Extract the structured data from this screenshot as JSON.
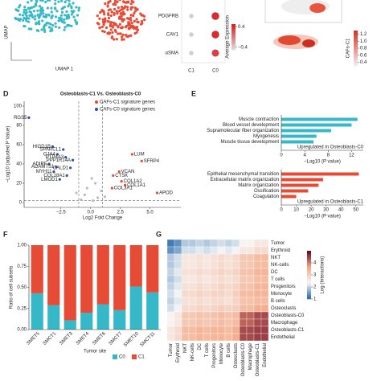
{
  "chart_data": [
    {
      "type": "umap",
      "xlabel": "UMAP 1",
      "ylabel": "UMAP",
      "colors": [
        "#36b8c8",
        "#e64b35"
      ]
    },
    {
      "type": "dot",
      "categories": [
        "C1",
        "C0"
      ],
      "rows": [
        "PDGFRB",
        "CAV1",
        "αSMA"
      ],
      "values": [
        [
          -0.4,
          0.4
        ],
        [
          -0.4,
          0.4
        ],
        [
          -0.4,
          0.3
        ]
      ],
      "clim": [
        -0.5,
        0.5
      ],
      "cticks": [
        0.4,
        {
          "value": -0.4,
          "label": "−0.4"
        }
      ],
      "colorbar_label": "Average Expression",
      "colors": [
        "#dddddd",
        "#d7191c"
      ]
    },
    {
      "type": "feature",
      "colorbar_label": "CAFs-C1",
      "clim": [
        0.3,
        1.3
      ],
      "cticks": [
        1.2,
        {
          "value": 1,
          "label": "1.0"
        },
        0.8,
        0.6,
        0.4
      ],
      "colors": [
        "#f0f0f0",
        "#d7301f"
      ]
    },
    {
      "type": "volcano",
      "panel": "D",
      "title": "Osteoblasts-C1 Vs. Osteoblasts-C0",
      "xlabel": "Log2 Fold Change",
      "ylabel": "−Log10 (adjusted P Value)",
      "xlim": [
        -5.6,
        7.6
      ],
      "ylim": [
        -5,
        105
      ],
      "xticks": [
        {
          "value": -2.5,
          "label": "−2.5"
        },
        {
          "value": 0,
          "label": "0.0"
        },
        2.5,
        {
          "value": 5,
          "label": "5.0"
        }
      ],
      "yticks": [
        0,
        20,
        40,
        60,
        80,
        100
      ],
      "xlines": [
        -1,
        1
      ],
      "ylines": [
        2
      ],
      "series": [
        {
          "name": "CAFs-C1 signature genes",
          "color": "#e64b35",
          "x": [
            3.5,
            4.3,
            2.4,
            1.9,
            2.6,
            2.9,
            1.8,
            5.6
          ],
          "values": [
            50,
            43,
            32,
            28,
            22,
            18,
            15,
            10
          ],
          "labels": [
            "LUM",
            "SFRP4",
            "VCAN",
            "CTSK",
            "COL1A2",
            "COL1A1",
            "COL3A1",
            "APOD"
          ]
        },
        {
          "name": "CAFs-C0 signature genes",
          "color": "#2f4fa3",
          "x": [
            -5.2,
            -3.2,
            -2.3,
            -2.8,
            -2.1,
            -1.5,
            -3.5,
            -2.9,
            -1.7,
            -3.1,
            -2.0,
            -2.6
          ],
          "values": [
            88,
            58,
            55,
            50,
            47,
            44,
            40,
            37,
            36,
            32,
            28,
            24
          ],
          "labels": [
            "RGS5",
            "HIGD1B",
            "SPARCL1",
            "GJA4",
            "PTP4A3",
            "PPP1R14A",
            "ADIRF",
            "ADAMTS1",
            "CALD1",
            "MYH11",
            "COL18A1",
            "LMOD1"
          ]
        },
        {
          "color": "#bbbbbb",
          "x": [
            -0.8,
            -0.5,
            0.2,
            0.6,
            0.9,
            -0.3,
            0.4,
            1.2,
            -1.2,
            0.1
          ],
          "values": [
            3,
            8,
            2,
            5,
            12,
            15,
            20,
            6,
            10,
            25
          ]
        }
      ]
    },
    {
      "type": "hbar",
      "panel": "E",
      "categories": [
        "Muscle contraction",
        "Blood vessel development",
        "Supramolecular fiber organization",
        "Myogenesis",
        "Muscle tissue development"
      ],
      "values": [
        13,
        12,
        8.5,
        6,
        5.5
      ],
      "color": "#36b8c8",
      "xlim": [
        0,
        14
      ],
      "xticks": [
        0,
        4,
        8,
        12
      ],
      "xlabel": "−Log10 (P value)",
      "annotation": "Upregulated in Osteoblasts-C0"
    },
    {
      "type": "hbar",
      "categories": [
        "Epithelial mesenchymal transition",
        "Extracellular matrix organization",
        "Matrix organization",
        "Ossification",
        "Coagulation"
      ],
      "values": [
        52,
        28,
        25,
        18,
        10
      ],
      "color": "#e64b35",
      "xlim": [
        0,
        55
      ],
      "xticks": [
        0,
        10,
        20,
        30,
        40,
        50
      ],
      "xlabel": "−Log10 (P value)",
      "annotation": "Upregulated in Osteoblasts-C1"
    },
    {
      "type": "stacked",
      "panel": "F",
      "categories": [
        "SMET5",
        "SMCT1",
        "SMET3",
        "SMET4",
        "SMET6",
        "SMCT7",
        "SMET10",
        "SMCT11"
      ],
      "series": [
        {
          "name": "C0",
          "color": "#36b8c8",
          "values": [
            0.43,
            0.29,
            0.11,
            0.2,
            0.3,
            0.23,
            0.51,
            0.44
          ]
        },
        {
          "name": "C1",
          "color": "#e64b35",
          "values": [
            0.57,
            0.71,
            0.89,
            0.8,
            0.7,
            0.77,
            0.49,
            0.56
          ]
        }
      ],
      "ylim": [
        0,
        1
      ],
      "yticks": [
        {
          "value": 0,
          "label": "0.00"
        },
        0.25,
        {
          "value": 0.5,
          "label": "0.50"
        },
        0.75,
        {
          "value": 1,
          "label": "1.00"
        }
      ],
      "xlabel": "Tumor site",
      "ylabel": "Ratio of cell subsets"
    },
    {
      "type": "heatmap",
      "panel": "G",
      "rows": [
        "Tumor",
        "Erythroid",
        "NKT",
        "NK-cells",
        "DC",
        "T cells",
        "Progenitors",
        "Monocyte",
        "B cells",
        "Osteoclasts",
        "Osteoblasts-C0",
        "Macrophage",
        "Osteoblasts-C1",
        "Endothelial"
      ],
      "columns": [
        "Tumor",
        "Erythroid",
        "NKT",
        "NK-cells",
        "DC",
        "T cells",
        "Progenitors",
        "Monocyte",
        "B cells",
        "Osteoclasts",
        "Osteoblasts-C0",
        "Macrophage",
        "Osteoblasts-C1",
        "Endothelial"
      ],
      "values": [
        [
          1.2,
          1.4,
          1.9,
          1.9,
          2.0,
          1.9,
          2.0,
          2.1,
          2.0,
          2.1,
          2.4,
          2.4,
          2.6,
          2.6
        ],
        [
          1.4,
          1.6,
          2.1,
          2.1,
          2.2,
          2.1,
          2.2,
          2.3,
          2.2,
          2.3,
          2.6,
          2.6,
          2.8,
          2.8
        ],
        [
          1.9,
          2.1,
          2.6,
          2.6,
          2.7,
          2.6,
          2.7,
          2.8,
          2.7,
          2.8,
          3.1,
          3.1,
          3.3,
          3.3
        ],
        [
          1.9,
          2.1,
          2.6,
          2.6,
          2.7,
          2.6,
          2.7,
          2.8,
          2.7,
          2.8,
          3.1,
          3.1,
          3.3,
          3.3
        ],
        [
          2.0,
          2.2,
          2.7,
          2.7,
          2.8,
          2.7,
          2.8,
          2.9,
          2.8,
          2.9,
          3.2,
          3.2,
          3.4,
          3.4
        ],
        [
          1.9,
          2.1,
          2.6,
          2.6,
          2.7,
          2.6,
          2.7,
          2.8,
          2.7,
          2.8,
          3.1,
          3.1,
          3.3,
          3.3
        ],
        [
          2.0,
          2.2,
          2.7,
          2.7,
          2.8,
          2.7,
          2.8,
          2.9,
          2.8,
          2.9,
          3.2,
          3.2,
          3.4,
          3.4
        ],
        [
          2.1,
          2.3,
          2.8,
          2.8,
          2.9,
          2.8,
          2.9,
          2.9,
          2.8,
          3.0,
          3.3,
          3.3,
          3.4,
          3.4
        ],
        [
          2.0,
          2.2,
          2.7,
          2.7,
          2.8,
          2.7,
          2.8,
          2.8,
          2.7,
          2.9,
          3.2,
          3.2,
          3.3,
          3.3
        ],
        [
          2.1,
          2.3,
          2.8,
          2.8,
          2.9,
          2.8,
          2.9,
          3.0,
          2.9,
          3.0,
          3.3,
          3.3,
          3.5,
          3.5
        ],
        [
          2.4,
          2.6,
          3.1,
          3.1,
          3.2,
          3.1,
          3.2,
          3.3,
          3.2,
          3.3,
          4.2,
          4.2,
          4.4,
          4.4
        ],
        [
          2.4,
          2.6,
          3.1,
          3.1,
          3.2,
          3.1,
          3.2,
          3.3,
          3.2,
          3.3,
          4.2,
          4.2,
          4.4,
          4.4
        ],
        [
          2.6,
          2.8,
          3.3,
          3.3,
          3.4,
          3.3,
          3.4,
          3.4,
          3.3,
          3.5,
          4.4,
          4.4,
          4.5,
          4.5
        ],
        [
          2.6,
          2.8,
          3.3,
          3.3,
          3.4,
          3.3,
          3.4,
          3.4,
          3.3,
          3.5,
          4.4,
          4.4,
          4.5,
          4.5
        ]
      ],
      "clim": [
        1,
        5
      ],
      "cticks": [
        1,
        2,
        3,
        4
      ],
      "colorbar_label": "Log (Interactions)",
      "colors": [
        "#2166ac",
        "#f7f7f7",
        "#f4a582",
        "#67001f"
      ]
    }
  ]
}
